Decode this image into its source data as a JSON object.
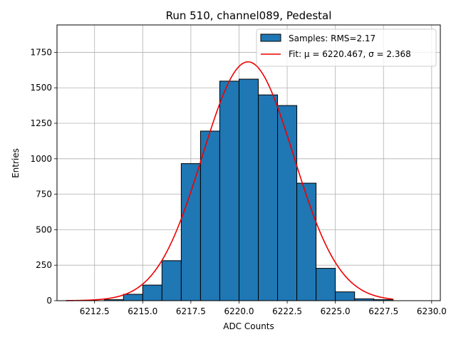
{
  "chart_data": {
    "type": "bar",
    "title": "Run 510, channel089, Pedestal",
    "xlabel": "ADC Counts",
    "ylabel": "Entries",
    "xlim": [
      6210.55,
      6230.45
    ],
    "ylim": [
      0,
      1943
    ],
    "xticks": [
      6212.5,
      6215.0,
      6217.5,
      6220.0,
      6222.5,
      6225.0,
      6227.5,
      6230.0
    ],
    "xtick_labels": [
      "6212.5",
      "6215.0",
      "6217.5",
      "6220.0",
      "6222.5",
      "6225.0",
      "6227.5",
      "6230.0"
    ],
    "yticks": [
      0,
      250,
      500,
      750,
      1000,
      1250,
      1500,
      1750
    ],
    "ytick_labels": [
      "0",
      "250",
      "500",
      "750",
      "1000",
      "1250",
      "1500",
      "1750"
    ],
    "grid": true,
    "histogram": {
      "name": "Samples: RMS=2.17",
      "color": "#1f77b4",
      "edge_color": "#000000",
      "bins": [
        {
          "x0": 6213,
          "x1": 6214,
          "value": 7
        },
        {
          "x0": 6214,
          "x1": 6215,
          "value": 45
        },
        {
          "x0": 6215,
          "x1": 6216,
          "value": 110
        },
        {
          "x0": 6216,
          "x1": 6217,
          "value": 282
        },
        {
          "x0": 6217,
          "x1": 6218,
          "value": 966
        },
        {
          "x0": 6218,
          "x1": 6219,
          "value": 1195
        },
        {
          "x0": 6219,
          "x1": 6220,
          "value": 1547
        },
        {
          "x0": 6220,
          "x1": 6221,
          "value": 1561
        },
        {
          "x0": 6221,
          "x1": 6222,
          "value": 1450
        },
        {
          "x0": 6222,
          "x1": 6223,
          "value": 1375
        },
        {
          "x0": 6223,
          "x1": 6224,
          "value": 828
        },
        {
          "x0": 6224,
          "x1": 6225,
          "value": 228
        },
        {
          "x0": 6225,
          "x1": 6226,
          "value": 62
        },
        {
          "x0": 6226,
          "x1": 6227,
          "value": 13
        },
        {
          "x0": 6227,
          "x1": 6228,
          "value": 7
        }
      ]
    },
    "fit": {
      "name": "Fit: μ = 6220.467, σ = 2.368",
      "mu": 6220.467,
      "sigma": 2.368,
      "amplitude": 1683,
      "x_range": [
        6211.0,
        6228.0
      ],
      "color": "#ee0000"
    },
    "legend": {
      "position": "top-right",
      "entries": [
        "Samples: RMS=2.17",
        "Fit: μ = 6220.467, σ = 2.368"
      ]
    }
  }
}
